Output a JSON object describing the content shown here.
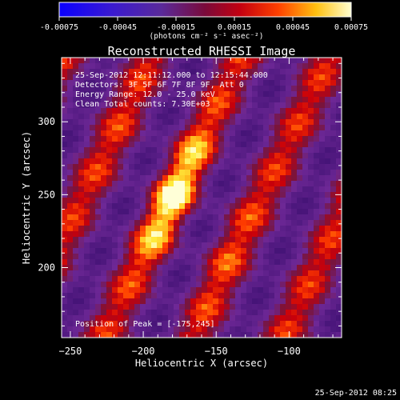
{
  "colorbar": {
    "ticks": [
      "-0.00075",
      "-0.00045",
      "-0.00015",
      "0.00015",
      "0.00045",
      "0.00075"
    ],
    "tick_values": [
      -0.00075,
      -0.00045,
      -0.00015,
      0.00015,
      0.00045,
      0.00075
    ],
    "range": [
      -0.00075,
      0.00075
    ],
    "unit_label": "(photons cm⁻² s⁻¹ asec⁻²)"
  },
  "plot": {
    "title": "Reconstructed RHESSI Image",
    "xlabel": "Heliocentric X (arcsec)",
    "ylabel": "Heliocentric Y (arcsec)",
    "xticks": [
      "−250",
      "−200",
      "−150",
      "−100"
    ],
    "xtick_values": [
      -250,
      -200,
      -150,
      -100
    ],
    "yticks": [
      "200",
      "250",
      "300"
    ],
    "ytick_values": [
      200,
      250,
      300
    ],
    "xlim": [
      -256,
      -64
    ],
    "ylim": [
      152,
      344
    ],
    "info_lines": [
      "25-Sep-2012 12:11:12.000 to 12:15:44.000",
      "Detectors: 3F 5F 6F 7F 8F 9F, Att 0",
      "Energy Range: 12.0 - 25.0 keV",
      "Clean    Total counts: 7.30E+03"
    ],
    "peak_label": "Position of Peak = [-175,245]",
    "peak": [
      -175,
      245
    ]
  },
  "footer": {
    "timestamp": "25-Sep-2012 08:25"
  },
  "colors": {
    "background": "#000000",
    "text": "#ffffff"
  }
}
